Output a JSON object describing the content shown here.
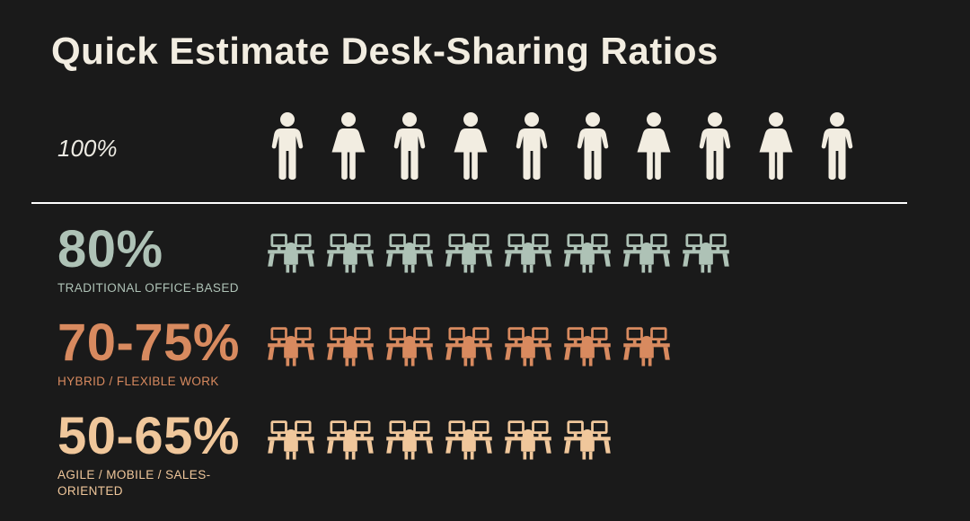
{
  "title": "Quick Estimate Desk-Sharing Ratios",
  "colors": {
    "background": "#1a1a1a",
    "cream": "#f2ede1",
    "sage": "#aec2b6",
    "terracotta": "#d88a5f",
    "peach": "#f0c79b",
    "divider": "#ffffff"
  },
  "total": {
    "percent": "100%",
    "color": "#f2ede1",
    "person_count": 10,
    "icon_pattern": [
      "man",
      "woman",
      "man",
      "woman",
      "man",
      "man",
      "woman",
      "man",
      "woman",
      "man"
    ]
  },
  "rows": [
    {
      "percent": "80%",
      "label": "TRADITIONAL OFFICE-BASED",
      "desk_count": 8,
      "color": "#aec2b6"
    },
    {
      "percent": "70-75%",
      "label": "HYBRID / FLEXIBLE WORK",
      "desk_count": 7,
      "color": "#d88a5f"
    },
    {
      "percent": "50-65%",
      "label": "AGILE / MOBILE / SALES-ORIENTED",
      "desk_count": 6,
      "color": "#f0c79b"
    }
  ],
  "chart_data": {
    "type": "bar",
    "variant": "pictograph",
    "title": "Quick Estimate Desk-Sharing Ratios",
    "categories": [
      "All employees",
      "Traditional office-based",
      "Hybrid / flexible work",
      "Agile / mobile / sales-oriented"
    ],
    "value_labels": [
      "100%",
      "80%",
      "70-75%",
      "50-65%"
    ],
    "values_percent": [
      100,
      80,
      72.5,
      57.5
    ],
    "icon_counts": [
      10,
      8,
      7,
      6
    ],
    "icon_types": [
      "person",
      "shared-desk",
      "shared-desk",
      "shared-desk"
    ],
    "legend_position": "none",
    "grid": false,
    "background": "#1a1a1a"
  }
}
